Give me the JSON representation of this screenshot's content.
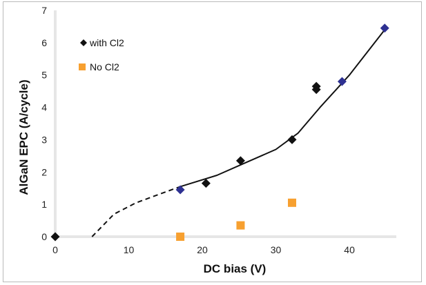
{
  "chart_data": {
    "type": "scatter",
    "xlabel": "DC bias (V)",
    "ylabel": "AlGaN EPC (A/cycle)",
    "xlim": [
      0,
      46
    ],
    "ylim": [
      0,
      7
    ],
    "x_ticks": [
      0,
      10,
      20,
      30,
      40
    ],
    "y_ticks": [
      0,
      1,
      2,
      3,
      4,
      5,
      6,
      7
    ],
    "grid": false,
    "legend_position": "top-left",
    "series": [
      {
        "name": "with Cl2",
        "marker": "diamond",
        "color": "#111111",
        "points": [
          {
            "x": 0,
            "y": 0
          },
          {
            "x": 20.5,
            "y": 1.65
          },
          {
            "x": 25.2,
            "y": 2.35
          },
          {
            "x": 32.2,
            "y": 3.0
          },
          {
            "x": 35.5,
            "y": 4.55
          },
          {
            "x": 35.5,
            "y": 4.65
          }
        ]
      },
      {
        "name": "",
        "marker": "diamond",
        "color": "#2e3192",
        "points": [
          {
            "x": 17,
            "y": 1.45
          },
          {
            "x": 39,
            "y": 4.8
          },
          {
            "x": 44.8,
            "y": 6.45
          }
        ]
      },
      {
        "name": "No Cl2",
        "marker": "square",
        "color": "#f7a030",
        "points": [
          {
            "x": 17,
            "y": 0.0
          },
          {
            "x": 25.2,
            "y": 0.35
          },
          {
            "x": 32.2,
            "y": 1.05
          }
        ]
      }
    ],
    "trend_line_solid": [
      {
        "x": 17,
        "y": 1.55
      },
      {
        "x": 22,
        "y": 1.9
      },
      {
        "x": 26,
        "y": 2.3
      },
      {
        "x": 30,
        "y": 2.7
      },
      {
        "x": 33,
        "y": 3.2
      },
      {
        "x": 36,
        "y": 4.0
      },
      {
        "x": 40,
        "y": 5.0
      },
      {
        "x": 44.8,
        "y": 6.4
      }
    ],
    "trend_line_dashed": [
      {
        "x": 5,
        "y": 0.0
      },
      {
        "x": 8,
        "y": 0.7
      },
      {
        "x": 11,
        "y": 1.05
      },
      {
        "x": 14,
        "y": 1.3
      },
      {
        "x": 17,
        "y": 1.55
      }
    ]
  }
}
